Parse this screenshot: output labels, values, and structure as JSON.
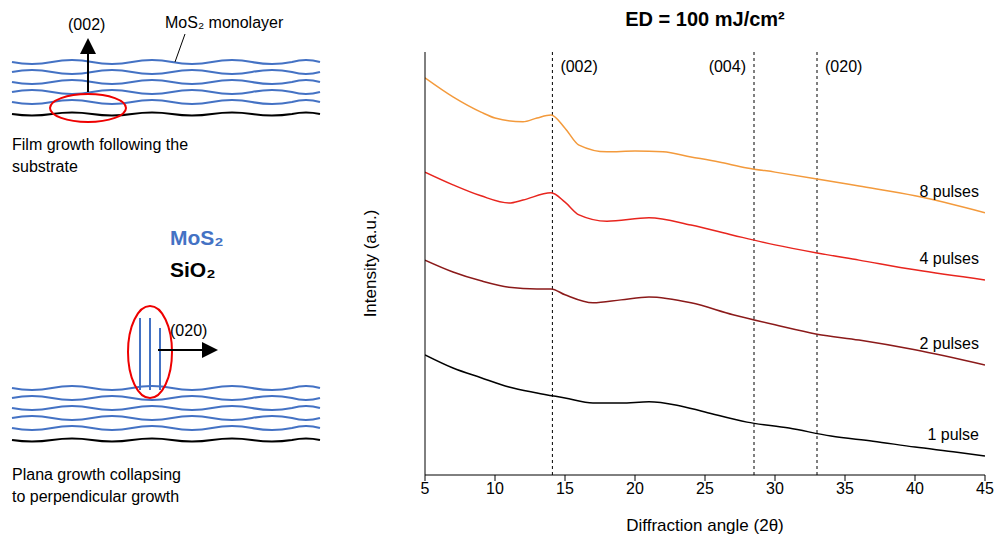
{
  "diagram": {
    "top": {
      "arrow_label": "(002)",
      "layer_label": "MoS₂ monolayer",
      "caption": [
        "Film growth following the",
        "substrate"
      ]
    },
    "materials": [
      {
        "text": "MoS₂",
        "color": "#4472c4"
      },
      {
        "text": "SiO₂",
        "color": "#000000"
      }
    ],
    "bottom": {
      "arrow_label": "(020)",
      "caption": [
        "Plana growth collapsing",
        "to perpendicular growth"
      ]
    }
  },
  "chart_data": {
    "type": "line",
    "title": "ED = 100 mJ/cm²",
    "x_label": "Diffraction angle (2θ)",
    "y_label": "Intensity (a.u.)",
    "xlim": [
      5,
      45
    ],
    "xticks": [
      5,
      10,
      15,
      20,
      25,
      30,
      35,
      40,
      45
    ],
    "ylim": [
      0,
      100
    ],
    "yticks": [],
    "tick_labels": "x",
    "grid": false,
    "annotations": [
      {
        "x": 14.1,
        "label": "(002)"
      },
      {
        "x": 28.5,
        "label": "(004)"
      },
      {
        "x": 33,
        "label": "(020)"
      }
    ],
    "series": [
      {
        "name": "8 pulses",
        "color": "#f39a3c",
        "x": [
          5,
          7,
          9,
          10,
          12,
          13,
          14,
          15,
          16,
          18,
          20,
          22,
          24,
          26,
          28,
          30,
          33,
          36,
          40,
          45
        ],
        "values": [
          93.9,
          89.4,
          85.8,
          84.4,
          83.5,
          84.4,
          85.1,
          82.0,
          78.0,
          76.4,
          76.6,
          76.4,
          75.2,
          74.0,
          72.6,
          71.6,
          70.0,
          68.3,
          66.0,
          62.0
        ]
      },
      {
        "name": "4 pulses",
        "color": "#e8251e",
        "x": [
          5,
          7,
          9,
          11,
          12,
          14,
          15,
          16,
          18,
          21,
          24,
          27,
          30,
          33,
          36,
          40,
          45
        ],
        "values": [
          71.6,
          68.6,
          66.0,
          64.3,
          65.0,
          66.7,
          64.5,
          61.5,
          60.0,
          60.8,
          59.1,
          56.7,
          54.4,
          52.5,
          50.8,
          48.5,
          46.1
        ]
      },
      {
        "name": "2 pulses",
        "color": "#8b1a1a",
        "x": [
          5,
          7,
          9,
          11,
          13,
          14,
          15,
          17,
          19,
          21,
          24,
          27,
          30,
          33,
          36,
          40,
          45
        ],
        "values": [
          50.8,
          48.0,
          45.9,
          44.4,
          44.0,
          44.0,
          42.6,
          40.7,
          41.4,
          42.1,
          40.7,
          37.9,
          35.5,
          33.3,
          31.9,
          29.6,
          26.0
        ]
      },
      {
        "name": "1 pulse",
        "color": "#000000",
        "x": [
          5,
          7,
          9,
          11,
          13,
          15,
          17,
          19,
          21,
          23,
          25,
          28,
          31,
          34,
          37,
          40,
          43,
          45
        ],
        "values": [
          28.4,
          25.3,
          23.0,
          20.8,
          19.4,
          18.2,
          17.0,
          17.0,
          17.3,
          16.5,
          14.9,
          12.5,
          11.1,
          9.2,
          8.0,
          6.6,
          5.4,
          4.5
        ]
      }
    ]
  }
}
